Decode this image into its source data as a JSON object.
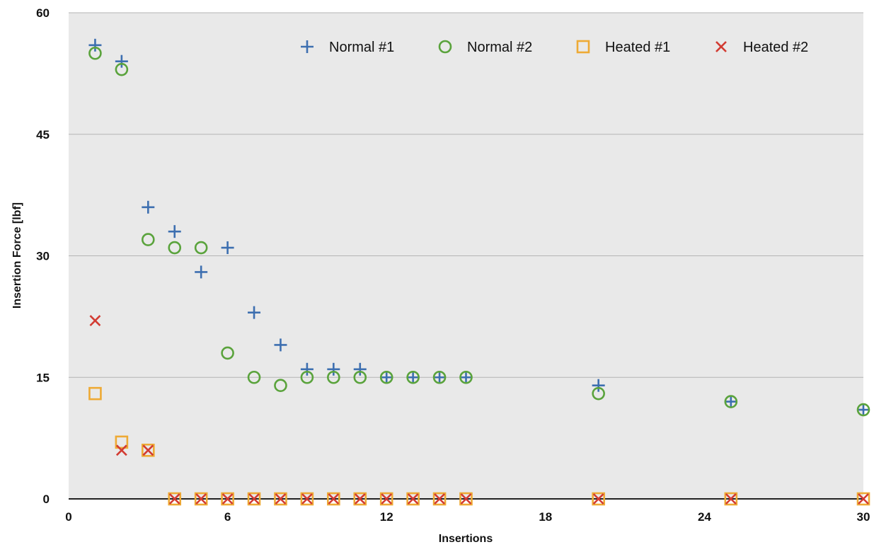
{
  "chart_data": {
    "type": "scatter",
    "title": "",
    "xlabel": "Insertions",
    "ylabel": "Insertion Force [lbf]",
    "xlim": [
      0,
      30
    ],
    "ylim": [
      0,
      60
    ],
    "x_ticks": [
      "0",
      "6",
      "12",
      "18",
      "24",
      "30"
    ],
    "y_ticks": [
      "0",
      "15",
      "30",
      "45",
      "60"
    ],
    "grid": "horizontal",
    "legend_position": "top-right",
    "plot_background": "#e9e9e9",
    "series": [
      {
        "name": "Normal #1",
        "marker": "plus",
        "color": "#3d6fb0",
        "x": [
          1,
          2,
          3,
          4,
          5,
          6,
          7,
          8,
          9,
          10,
          11,
          12,
          13,
          14,
          15,
          20,
          25,
          30
        ],
        "y": [
          56,
          54,
          36,
          33,
          28,
          31,
          23,
          19,
          16,
          16,
          16,
          15,
          15,
          15,
          15,
          14,
          12,
          11
        ]
      },
      {
        "name": "Normal #2",
        "marker": "circle",
        "color": "#5aa33c",
        "x": [
          1,
          2,
          3,
          4,
          5,
          6,
          7,
          8,
          9,
          10,
          11,
          12,
          13,
          14,
          15,
          20,
          25,
          30
        ],
        "y": [
          55,
          53,
          32,
          31,
          31,
          18,
          15,
          14,
          15,
          15,
          15,
          15,
          15,
          15,
          15,
          13,
          12,
          11
        ]
      },
      {
        "name": "Heated #1",
        "marker": "square",
        "color": "#eeaa35",
        "x": [
          1,
          2,
          3,
          4,
          5,
          6,
          7,
          8,
          9,
          10,
          11,
          12,
          13,
          14,
          15,
          20,
          25,
          30
        ],
        "y": [
          13,
          7,
          6,
          0,
          0,
          0,
          0,
          0,
          0,
          0,
          0,
          0,
          0,
          0,
          0,
          0,
          0,
          0
        ]
      },
      {
        "name": "Heated #2",
        "marker": "x",
        "color": "#d23b32",
        "x": [
          1,
          2,
          3,
          4,
          5,
          6,
          7,
          8,
          9,
          10,
          11,
          12,
          13,
          14,
          15,
          20,
          25,
          30
        ],
        "y": [
          22,
          6,
          6,
          0,
          0,
          0,
          0,
          0,
          0,
          0,
          0,
          0,
          0,
          0,
          0,
          0,
          0,
          0
        ]
      }
    ]
  }
}
